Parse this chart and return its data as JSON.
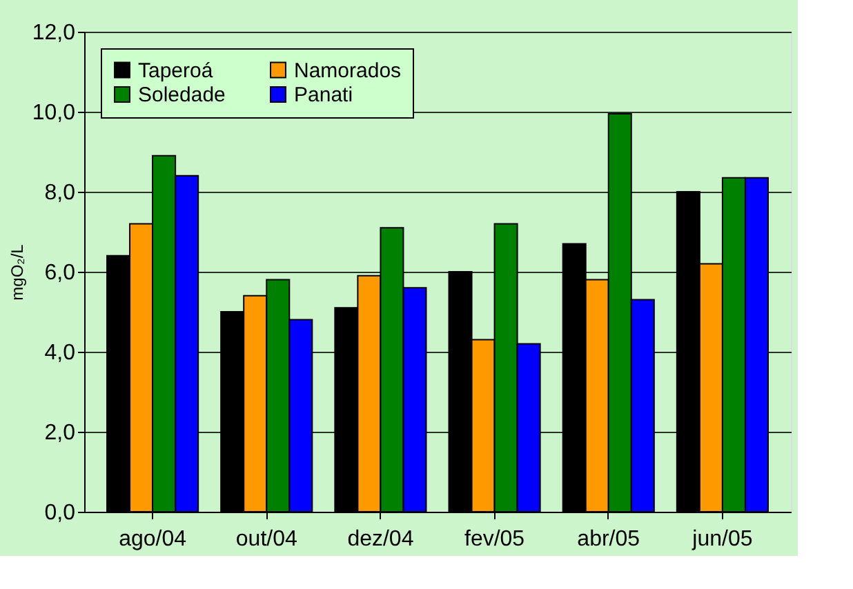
{
  "chart_data": {
    "type": "bar",
    "ylabel": "mgO₂/L",
    "categories": [
      "ago/04",
      "out/04",
      "dez/04",
      "fev/05",
      "abr/05",
      "jun/05"
    ],
    "series": [
      {
        "name": "Taperoá",
        "color": "#000000",
        "values": [
          6.4,
          5.0,
          5.1,
          6.0,
          6.7,
          8.0
        ]
      },
      {
        "name": "Namorados",
        "color": "#ff9900",
        "values": [
          7.2,
          5.4,
          5.9,
          4.3,
          5.8,
          6.2
        ]
      },
      {
        "name": "Soledade",
        "color": "#008000",
        "values": [
          8.9,
          5.8,
          7.1,
          7.2,
          9.95,
          8.35
        ]
      },
      {
        "name": "Panati",
        "color": "#0000ff",
        "values": [
          8.4,
          4.8,
          5.6,
          4.2,
          5.3,
          8.35
        ]
      }
    ],
    "ylim": [
      0,
      12
    ],
    "yticks": [
      {
        "value": 0,
        "label": "0,0"
      },
      {
        "value": 2,
        "label": "2,0"
      },
      {
        "value": 4,
        "label": "4,0"
      },
      {
        "value": 6,
        "label": "6,0"
      },
      {
        "value": 8,
        "label": "8,0"
      },
      {
        "value": 10,
        "label": "10,0"
      },
      {
        "value": 12,
        "label": "12,0"
      }
    ],
    "grid": "y",
    "legend": "top left"
  }
}
